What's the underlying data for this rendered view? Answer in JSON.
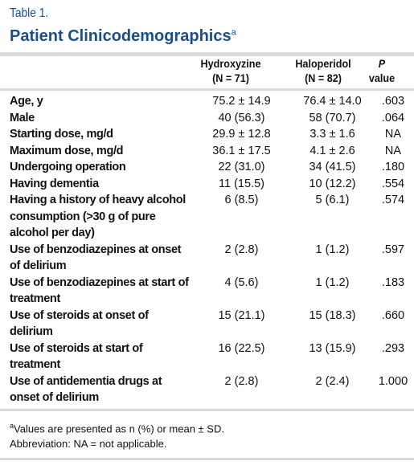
{
  "table_label": "Table 1.",
  "title": "Patient Clinicodemographics",
  "title_note": "a",
  "columns": {
    "hydroxyzine": [
      "Hydroxyzine",
      "(N = 71)"
    ],
    "haloperidol": [
      "Haloperidol",
      "(N = 82)"
    ],
    "p_value": [
      "P",
      "value"
    ]
  },
  "rows": [
    {
      "label": [
        "Age, y"
      ],
      "hydroxyzine": "75.2 ± 14.9",
      "haloperidol": "76.4 ± 14.0",
      "p": ".603"
    },
    {
      "label": [
        "Male"
      ],
      "hydroxyzine": "40 (56.3)",
      "haloperidol": "58 (70.7)",
      "p": ".064"
    },
    {
      "label": [
        "Starting dose, mg/d"
      ],
      "hydroxyzine": "29.9 ± 12.8",
      "haloperidol": "3.3 ± 1.6",
      "p": "NA"
    },
    {
      "label": [
        "Maximum dose, mg/d"
      ],
      "hydroxyzine": "36.1 ± 17.5",
      "haloperidol": "4.1 ± 2.6",
      "p": "NA"
    },
    {
      "label": [
        "Undergoing operation"
      ],
      "hydroxyzine": "22 (31.0)",
      "haloperidol": "34 (41.5)",
      "p": ".180"
    },
    {
      "label": [
        "Having dementia"
      ],
      "hydroxyzine": "11 (15.5)",
      "haloperidol": "10 (12.2)",
      "p": ".554"
    },
    {
      "label": [
        "Having a history of heavy alcohol",
        "consumption (>30 g of pure",
        "alcohol per day)"
      ],
      "hydroxyzine": "6 (8.5)",
      "haloperidol": "5 (6.1)",
      "p": ".574"
    },
    {
      "label": [
        "Use of benzodiazepines at onset",
        "of delirium"
      ],
      "hydroxyzine": "2 (2.8)",
      "haloperidol": "1 (1.2)",
      "p": ".597"
    },
    {
      "label": [
        "Use of benzodiazepines at start of",
        "treatment"
      ],
      "hydroxyzine": "4 (5.6)",
      "haloperidol": "1 (1.2)",
      "p": ".183"
    },
    {
      "label": [
        "Use of steroids at onset of",
        "delirium"
      ],
      "hydroxyzine": "15 (21.1)",
      "haloperidol": "15 (18.3)",
      "p": ".660"
    },
    {
      "label": [
        "Use of steroids at start of",
        "treatment"
      ],
      "hydroxyzine": "16 (22.5)",
      "haloperidol": "13 (15.9)",
      "p": ".293"
    },
    {
      "label": [
        "Use of antidementia drugs at",
        "onset of delirium"
      ],
      "hydroxyzine": "2 (2.8)",
      "haloperidol": "2 (2.4)",
      "p": "1.000"
    }
  ],
  "footnotes": {
    "note_marker": "a",
    "note_text": "Values are presented as n (%) or mean ± SD.",
    "abbreviation": "Abbreviation: NA = not applicable."
  }
}
